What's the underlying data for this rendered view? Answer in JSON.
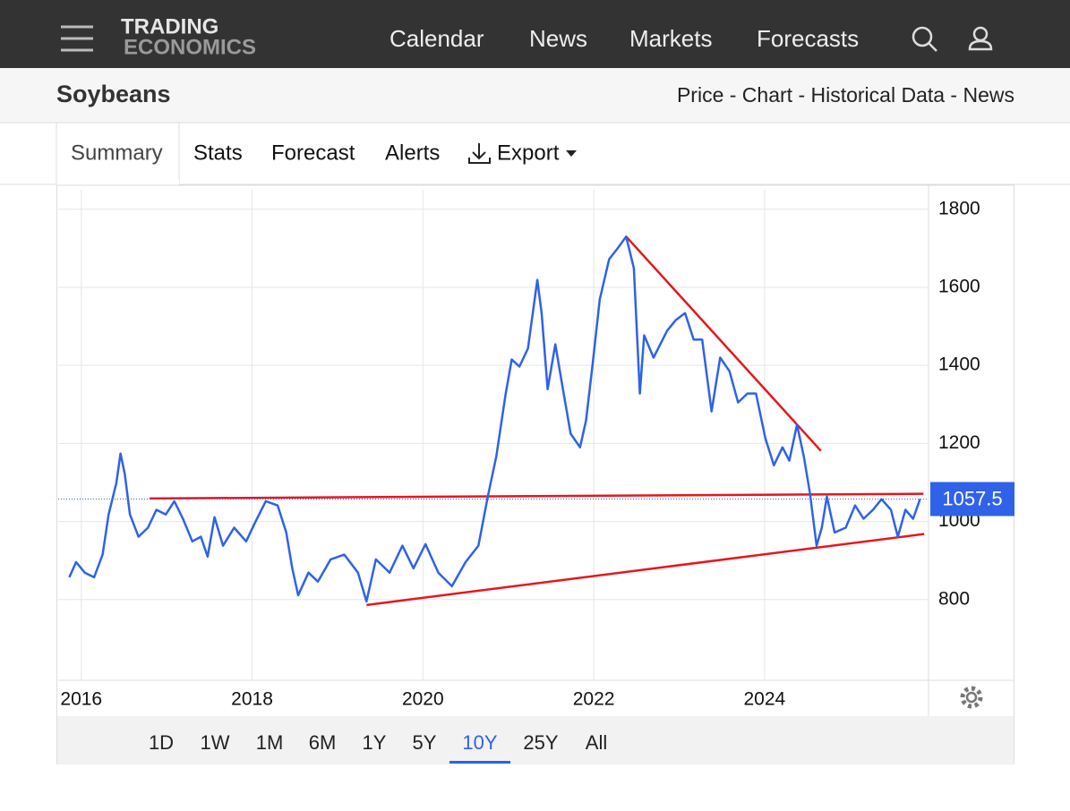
{
  "nav": {
    "brand": [
      "TRADING",
      "ECONOMICS"
    ],
    "links": [
      "Calendar",
      "News",
      "Markets",
      "Forecasts"
    ]
  },
  "header": {
    "title": "Soybeans",
    "links": "Price - Chart - Historical Data - News"
  },
  "tabs": [
    "Summary",
    "Stats",
    "Forecast",
    "Alerts",
    "Export"
  ],
  "chart_data": {
    "type": "line",
    "color": "#2f62e8",
    "grid": true,
    "x": [
      2015.86,
      2015.94,
      2016.04,
      2016.15,
      2016.25,
      2016.32,
      2016.41,
      2016.46,
      2016.51,
      2016.57,
      2016.67,
      2016.78,
      2016.88,
      2016.99,
      2017.09,
      2017.19,
      2017.3,
      2017.4,
      2017.48,
      2017.56,
      2017.66,
      2017.79,
      2017.93,
      2018.03,
      2018.16,
      2018.3,
      2018.4,
      2018.47,
      2018.54,
      2018.66,
      2018.77,
      2018.92,
      2019.08,
      2019.24,
      2019.34,
      2019.45,
      2019.61,
      2019.76,
      2019.89,
      2020.03,
      2020.18,
      2020.34,
      2020.5,
      2020.65,
      2020.76,
      2020.86,
      2020.97,
      2021.04,
      2021.13,
      2021.23,
      2021.34,
      2021.39,
      2021.46,
      2021.55,
      2021.63,
      2021.73,
      2021.84,
      2021.91,
      2021.99,
      2022.07,
      2022.18,
      2022.28,
      2022.38,
      2022.47,
      2022.54,
      2022.59,
      2022.7,
      2022.86,
      2022.96,
      2023.07,
      2023.17,
      2023.27,
      2023.38,
      2023.48,
      2023.59,
      2023.69,
      2023.8,
      2023.9,
      2024.01,
      2024.11,
      2024.21,
      2024.29,
      2024.38,
      2024.46,
      2024.53,
      2024.61,
      2024.67,
      2024.73,
      2024.82,
      2024.95,
      2025.06,
      2025.16,
      2025.27,
      2025.37,
      2025.48,
      2025.56,
      2025.65,
      2025.74,
      2025.82
    ],
    "values": [
      857,
      896,
      869,
      857,
      915,
      1018,
      1098,
      1174,
      1121,
      1018,
      961,
      984,
      1030,
      1018,
      1052,
      1007,
      949,
      961,
      910,
      1011,
      938,
      984,
      949,
      995,
      1052,
      1041,
      972,
      880,
      811,
      869,
      846,
      903,
      915,
      869,
      795,
      903,
      869,
      938,
      880,
      942,
      869,
      834,
      896,
      938,
      1064,
      1167,
      1328,
      1415,
      1397,
      1443,
      1619,
      1534,
      1339,
      1454,
      1351,
      1225,
      1190,
      1259,
      1408,
      1569,
      1672,
      1700,
      1730,
      1649,
      1328,
      1477,
      1420,
      1489,
      1516,
      1534,
      1466,
      1466,
      1282,
      1420,
      1385,
      1305,
      1328,
      1328,
      1213,
      1144,
      1190,
      1156,
      1248,
      1167,
      1075,
      938,
      984,
      1064,
      972,
      984,
      1041,
      1007,
      1030,
      1057,
      1030,
      961,
      1030,
      1007,
      1057.5
    ],
    "trendlines": [
      {
        "color": "#e8161c",
        "x": [
          2016.8,
          2025.86
        ],
        "values": [
          1059,
          1071
        ]
      },
      {
        "color": "#e8161c",
        "x": [
          2019.34,
          2025.87
        ],
        "values": [
          786,
          968
        ]
      },
      {
        "color": "#e8161c",
        "x": [
          2022.38,
          2024.66
        ],
        "values": [
          1730,
          1181
        ]
      }
    ],
    "current_value": 1057.5,
    "xlim": [
      2015.73,
      2025.92
    ],
    "xticks": [
      2016,
      2018,
      2020,
      2022,
      2024
    ],
    "ylim": [
      593,
      1850
    ],
    "yticks": [
      800,
      1000,
      1200,
      1400,
      1600,
      1800
    ]
  },
  "ranges": [
    "1D",
    "1W",
    "1M",
    "6M",
    "1Y",
    "5Y",
    "10Y",
    "25Y",
    "All"
  ],
  "active_range": "10Y"
}
